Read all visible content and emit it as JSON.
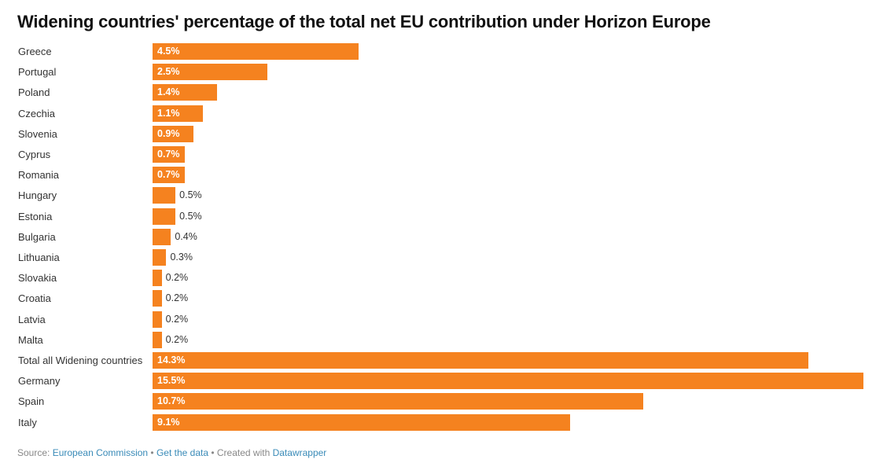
{
  "chart_data": {
    "type": "bar",
    "orientation": "horizontal",
    "title": "Widening countries' percentage of the total net EU contribution under Horizon Europe",
    "xlabel": "",
    "ylabel": "",
    "unit": "%",
    "xlim": [
      0,
      15.5
    ],
    "grid": false,
    "bar_color": "#f5821f",
    "categories": [
      "Greece",
      "Portugal",
      "Poland",
      "Czechia",
      "Slovenia",
      "Cyprus",
      "Romania",
      "Hungary",
      "Estonia",
      "Bulgaria",
      "Lithuania",
      "Slovakia",
      "Croatia",
      "Latvia",
      "Malta",
      "Total all Widening countries",
      "Germany",
      "Spain",
      "Italy"
    ],
    "values": [
      4.5,
      2.5,
      1.4,
      1.1,
      0.9,
      0.7,
      0.7,
      0.5,
      0.5,
      0.4,
      0.3,
      0.2,
      0.2,
      0.2,
      0.2,
      14.3,
      15.5,
      10.7,
      9.1
    ],
    "value_labels": [
      "4.5%",
      "2.5%",
      "1.4%",
      "1.1%",
      "0.9%",
      "0.7%",
      "0.7%",
      "0.5%",
      "0.5%",
      "0.4%",
      "0.3%",
      "0.2%",
      "0.2%",
      "0.2%",
      "0.2%",
      "14.3%",
      "15.5%",
      "10.7%",
      "9.1%"
    ]
  },
  "footer": {
    "source_prefix": "Source: ",
    "source_link": "European Commission",
    "separator": " • ",
    "data_link": "Get the data",
    "created_prefix": "Created with ",
    "created_link": "Datawrapper"
  }
}
